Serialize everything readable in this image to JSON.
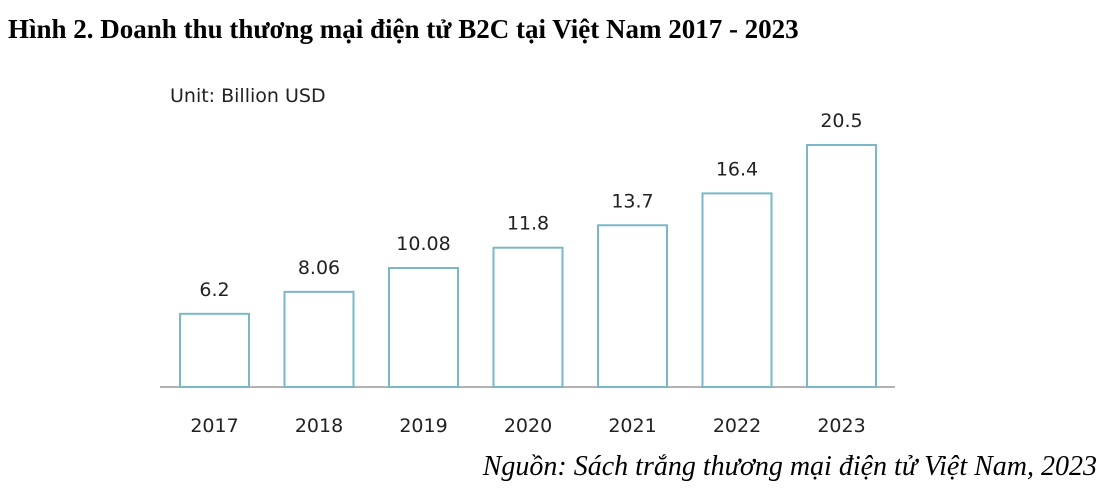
{
  "chart_data": {
    "type": "bar",
    "title": "Hình 2. Doanh thu thương mại điện tử B2C tại Việt Nam 2017 - 2023",
    "unit_label": "Unit: Billion USD",
    "categories": [
      "2017",
      "2018",
      "2019",
      "2020",
      "2021",
      "2022",
      "2023"
    ],
    "values": [
      6.2,
      8.06,
      10.08,
      11.8,
      13.7,
      16.4,
      20.5
    ],
    "color": "#7ab8c9",
    "source": "Nguồn: Sách trắng thương mại điện tử Việt Nam, 2023"
  }
}
